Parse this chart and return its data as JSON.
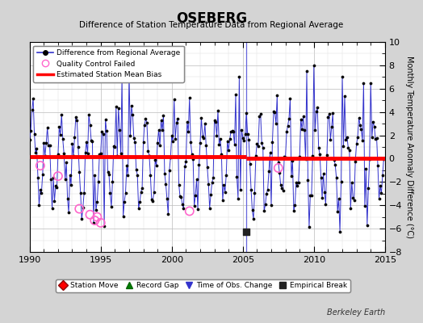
{
  "title": "OSEBERG",
  "subtitle": "Difference of Station Temperature Data from Regional Average",
  "ylabel_right": "Monthly Temperature Anomaly Difference (°C)",
  "watermark": "Berkeley Earth",
  "xlim": [
    1990,
    2015
  ],
  "ylim": [
    -8,
    10
  ],
  "yticks": [
    -8,
    -6,
    -4,
    -2,
    0,
    2,
    4,
    6,
    8,
    10
  ],
  "xticks": [
    1990,
    1995,
    2000,
    2005,
    2010,
    2015
  ],
  "bias_line_y1": 0.2,
  "bias_line_y2": 0.05,
  "vertical_line_x": 2005.25,
  "background_color": "#d4d4d4",
  "plot_bg_color": "#ffffff",
  "main_line_color": "#3333cc",
  "main_marker_color": "#000000",
  "bias_line_color": "#ff0000",
  "qc_marker_color": "#ff66cc",
  "qc_failed_times": [
    1990.75,
    1992.0,
    1993.5,
    1994.25,
    1994.58,
    1994.75,
    1995.0,
    2001.25,
    2007.5
  ],
  "qc_failed_values": [
    -0.6,
    -1.5,
    -4.3,
    -4.8,
    -5.3,
    -5.0,
    -5.5,
    -4.5,
    -0.8
  ],
  "empirical_break_x": 2005.25,
  "empirical_break_y": -6.3
}
